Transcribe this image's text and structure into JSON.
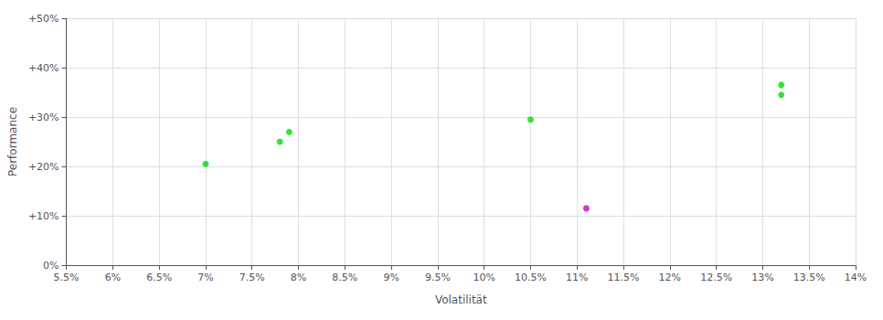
{
  "chart_data": {
    "type": "scatter",
    "xlabel": "Volatilität",
    "ylabel": "Performance",
    "xlim": [
      0.055,
      0.14
    ],
    "ylim": [
      0.0,
      0.5
    ],
    "xticks": [
      {
        "value": 0.055,
        "label": "5.5%"
      },
      {
        "value": 0.06,
        "label": "6%"
      },
      {
        "value": 0.065,
        "label": "6.5%"
      },
      {
        "value": 0.07,
        "label": "7%"
      },
      {
        "value": 0.075,
        "label": "7.5%"
      },
      {
        "value": 0.08,
        "label": "8%"
      },
      {
        "value": 0.085,
        "label": "8.5%"
      },
      {
        "value": 0.09,
        "label": "9%"
      },
      {
        "value": 0.095,
        "label": "9.5%"
      },
      {
        "value": 0.1,
        "label": "10%"
      },
      {
        "value": 0.105,
        "label": "10.5%"
      },
      {
        "value": 0.11,
        "label": "11%"
      },
      {
        "value": 0.115,
        "label": "11.5%"
      },
      {
        "value": 0.12,
        "label": "12%"
      },
      {
        "value": 0.125,
        "label": "12.5%"
      },
      {
        "value": 0.13,
        "label": "13%"
      },
      {
        "value": 0.135,
        "label": "13.5%"
      },
      {
        "value": 0.14,
        "label": "14%"
      }
    ],
    "yticks": [
      {
        "value": 0.0,
        "label": "0%"
      },
      {
        "value": 0.1,
        "label": "+10%"
      },
      {
        "value": 0.2,
        "label": "+20%"
      },
      {
        "value": 0.3,
        "label": "+30%"
      },
      {
        "value": 0.4,
        "label": "+40%"
      },
      {
        "value": 0.5,
        "label": "+50%"
      }
    ],
    "grid": true,
    "series": [
      {
        "color": "#00dd00",
        "x": [
          0.07,
          0.079,
          0.078,
          0.105,
          0.132,
          0.132
        ],
        "values": [
          0.205,
          0.27,
          0.25,
          0.295,
          0.365,
          0.345
        ]
      },
      {
        "color": "#cc00cc",
        "x": [
          0.111
        ],
        "values": [
          0.115
        ]
      }
    ]
  }
}
